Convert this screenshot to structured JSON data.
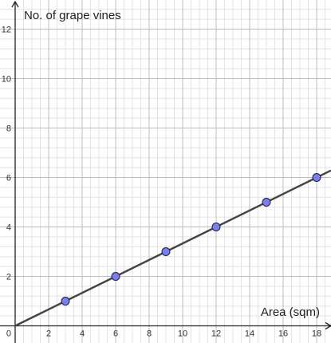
{
  "chart_data": {
    "type": "scatter",
    "title": "",
    "xlabel": "Area (sqm)",
    "ylabel": "No. of grape vines",
    "xlim": [
      0,
      19.6
    ],
    "ylim": [
      0,
      12.9
    ],
    "grid": true,
    "x_ticks": [
      2,
      4,
      6,
      8,
      10,
      12,
      14,
      16,
      18
    ],
    "y_ticks": [
      2,
      4,
      6,
      8,
      10,
      12
    ],
    "origin_label": "0",
    "series": [
      {
        "x": [
          3,
          6,
          9,
          12,
          15,
          18
        ],
        "y": [
          1,
          2,
          3,
          4,
          5,
          6
        ]
      }
    ],
    "trend_line": {
      "slope": 0.3333,
      "intercept": 0
    },
    "colors": {
      "point_fill": "#7a7fee",
      "point_stroke": "#1f1f3f",
      "line": "#444444",
      "grid_major": "#bdbdbd",
      "grid_minor": "#e3e3e3",
      "axis": "#222222"
    }
  }
}
